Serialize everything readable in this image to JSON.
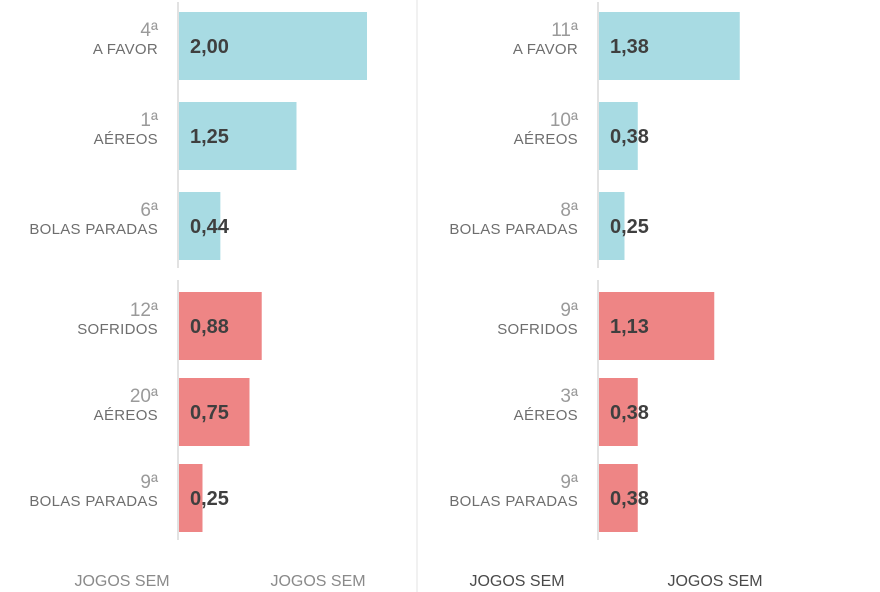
{
  "colors": {
    "positive": "#a8dbe3",
    "negative": "#ee8585"
  },
  "chart_data": [
    {
      "type": "bar",
      "orientation": "horizontal",
      "footer_labels": [
        "JOGOS SEM",
        "JOGOS SEM"
      ],
      "bars": [
        {
          "rank": "4ª",
          "label": "A FAVOR",
          "value": 2.0,
          "value_label": "2,00",
          "group": "positive"
        },
        {
          "rank": "1ª",
          "label": "AÉREOS",
          "value": 1.25,
          "value_label": "1,25",
          "group": "positive"
        },
        {
          "rank": "6ª",
          "label": "BOLAS PARADAS",
          "value": 0.44,
          "value_label": "0,44",
          "group": "positive"
        },
        {
          "rank": "12ª",
          "label": "SOFRIDOS",
          "value": 0.88,
          "value_label": "0,88",
          "group": "negative"
        },
        {
          "rank": "20ª",
          "label": "AÉREOS",
          "value": 0.75,
          "value_label": "0,75",
          "group": "negative"
        },
        {
          "rank": "9ª",
          "label": "BOLAS PARADAS",
          "value": 0.25,
          "value_label": "0,25",
          "group": "negative"
        }
      ]
    },
    {
      "type": "bar",
      "orientation": "horizontal",
      "footer_labels": [
        "JOGOS SEM",
        "JOGOS SEM"
      ],
      "bars": [
        {
          "rank": "11ª",
          "label": "A FAVOR",
          "value": 1.38,
          "value_label": "1,38",
          "group": "positive"
        },
        {
          "rank": "10ª",
          "label": "AÉREOS",
          "value": 0.38,
          "value_label": "0,38",
          "group": "positive"
        },
        {
          "rank": "8ª",
          "label": "BOLAS PARADAS",
          "value": 0.25,
          "value_label": "0,25",
          "group": "positive"
        },
        {
          "rank": "9ª",
          "label": "SOFRIDOS",
          "value": 1.13,
          "value_label": "1,13",
          "group": "negative"
        },
        {
          "rank": "3ª",
          "label": "AÉREOS",
          "value": 0.38,
          "value_label": "0,38",
          "group": "negative"
        },
        {
          "rank": "9ª",
          "label": "BOLAS PARADAS",
          "value": 0.38,
          "value_label": "0,38",
          "group": "negative"
        }
      ]
    }
  ]
}
